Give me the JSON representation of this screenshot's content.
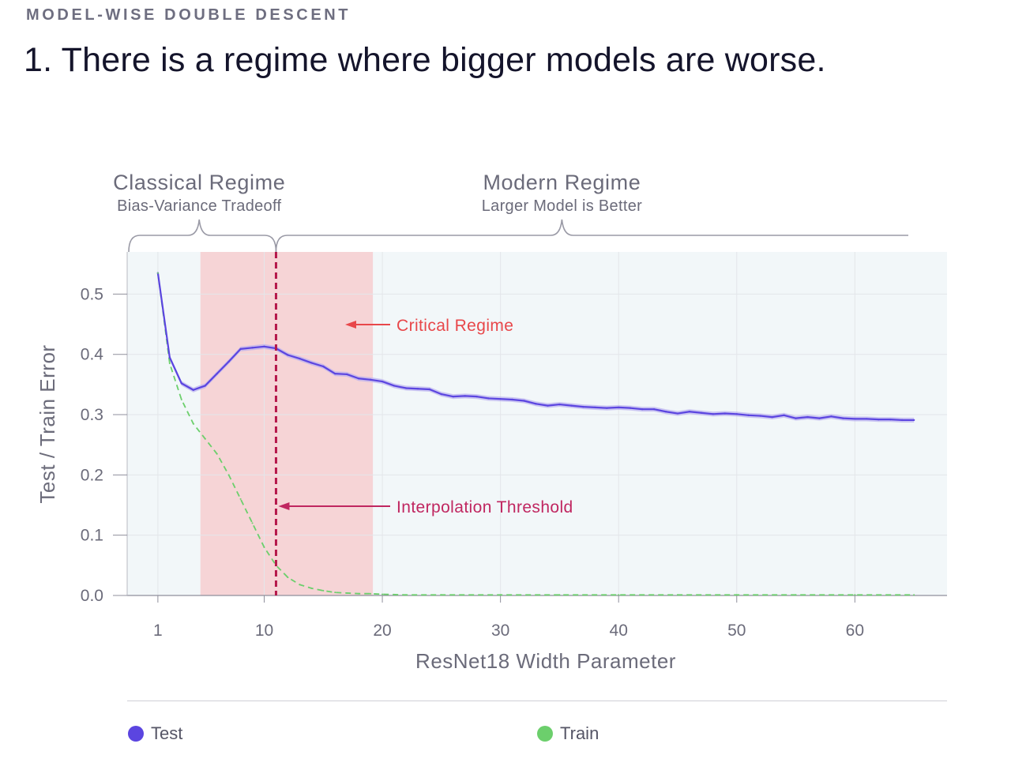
{
  "header": {
    "kicker": "MODEL-WISE DOUBLE DESCENT",
    "headline": "1. There is a regime where bigger models are worse."
  },
  "colors": {
    "test": "#5b45e0",
    "test_band": "#b9aff0",
    "train": "#6ccf6c",
    "critical_region": "#f6d4d6",
    "plot_background": "#f2f7f9",
    "threshold_line": "#b5174a",
    "critical_label": "#e8474a",
    "threshold_label": "#c02660",
    "brace": "#9a9aa6"
  },
  "chart_data": {
    "type": "line",
    "xlabel": "ResNet18 Width Parameter",
    "ylabel": "Test / Train Error",
    "xlim": [
      -1.6,
      67.8
    ],
    "ylim": [
      0,
      0.57
    ],
    "xticks": [
      1,
      10,
      20,
      30,
      40,
      50,
      60
    ],
    "yticks": [
      0.0,
      0.1,
      0.2,
      0.3,
      0.4,
      0.5
    ],
    "ytick_labels": [
      "0.0",
      "0.1",
      "0.2",
      "0.3",
      "0.4",
      "0.5"
    ],
    "grid": true,
    "legend_position": "bottom",
    "critical_region": [
      4.6,
      19.2
    ],
    "interpolation_threshold_x": 11.0,
    "annotations": {
      "critical": "Critical Regime",
      "threshold": "Interpolation Threshold"
    },
    "regimes": [
      {
        "title": "Classical Regime",
        "subtitle": "Bias-Variance Tradeoff",
        "from": -1.6,
        "to": 11.0,
        "center": 4.5
      },
      {
        "title": "Modern Regime",
        "subtitle": "Larger Model is Better",
        "from": 11.0,
        "to": 65.0,
        "center": 35.2
      }
    ],
    "series": [
      {
        "name": "Test",
        "style": "solid",
        "x": [
          1,
          2,
          3,
          4,
          5,
          6,
          7,
          8,
          9,
          10,
          11,
          12,
          13,
          14,
          15,
          16,
          17,
          18,
          19,
          20,
          21,
          22,
          23,
          24,
          25,
          26,
          27,
          28,
          29,
          30,
          31,
          32,
          33,
          34,
          35,
          36,
          37,
          38,
          39,
          40,
          41,
          42,
          43,
          44,
          45,
          46,
          47,
          48,
          49,
          50,
          51,
          52,
          53,
          54,
          55,
          56,
          57,
          58,
          59,
          60,
          61,
          62,
          63,
          64,
          65
        ],
        "values": [
          0.535,
          0.395,
          0.352,
          0.341,
          0.348,
          0.368,
          0.388,
          0.409,
          0.411,
          0.413,
          0.41,
          0.399,
          0.393,
          0.386,
          0.38,
          0.368,
          0.367,
          0.36,
          0.358,
          0.355,
          0.348,
          0.344,
          0.343,
          0.342,
          0.334,
          0.33,
          0.331,
          0.33,
          0.327,
          0.326,
          0.325,
          0.323,
          0.318,
          0.315,
          0.317,
          0.315,
          0.313,
          0.312,
          0.311,
          0.312,
          0.311,
          0.309,
          0.309,
          0.305,
          0.302,
          0.305,
          0.303,
          0.301,
          0.302,
          0.301,
          0.299,
          0.298,
          0.296,
          0.299,
          0.294,
          0.296,
          0.294,
          0.297,
          0.294,
          0.293,
          0.293,
          0.292,
          0.292,
          0.291,
          0.291
        ]
      },
      {
        "name": "Train",
        "style": "dashed",
        "x": [
          1,
          2,
          3,
          4,
          5,
          6,
          7,
          8,
          9,
          10,
          11,
          12,
          13,
          14,
          15,
          16,
          17,
          18,
          19,
          20,
          22,
          25,
          30,
          35,
          40,
          45,
          50,
          55,
          60,
          65
        ],
        "values": [
          0.535,
          0.385,
          0.325,
          0.285,
          0.26,
          0.235,
          0.2,
          0.16,
          0.12,
          0.08,
          0.05,
          0.03,
          0.018,
          0.012,
          0.008,
          0.005,
          0.004,
          0.003,
          0.003,
          0.002,
          0.001,
          0.001,
          0.001,
          0.001,
          0.001,
          0.001,
          0.001,
          0.001,
          0.001,
          0.001
        ]
      }
    ]
  }
}
